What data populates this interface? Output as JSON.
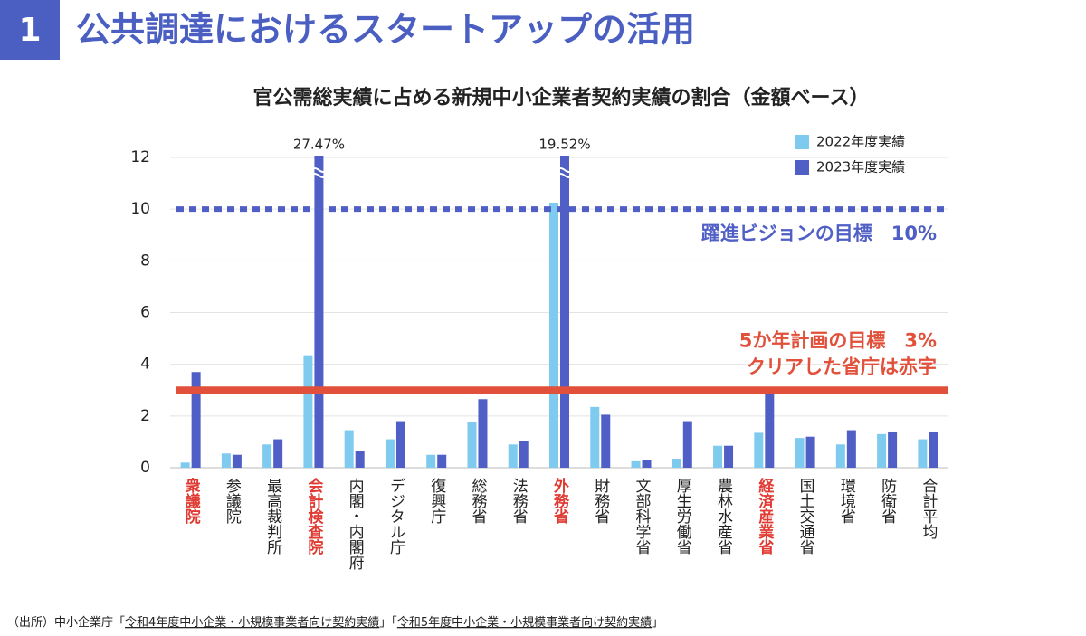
{
  "header": {
    "number": "1",
    "title": "公共調達におけるスタートアップの活用"
  },
  "chart_data": {
    "type": "bar",
    "title": "官公需総実績に占める新規中小企業者契約実績の割合（金額ベース）",
    "categories": [
      "衆議院",
      "参議院",
      "最高裁判所",
      "会計検査院",
      "内閣・内閣府",
      "デジタル庁",
      "復興庁",
      "総務省",
      "法務省",
      "外務省",
      "財務省",
      "文部科学省",
      "厚生労働省",
      "農林水産省",
      "経済産業省",
      "国土交通省",
      "環境省",
      "防衛省",
      "合計平均"
    ],
    "category_label_colors": [
      "#e03a32",
      "#222222",
      "#222222",
      "#e03a32",
      "#222222",
      "#222222",
      "#222222",
      "#222222",
      "#222222",
      "#e03a32",
      "#222222",
      "#222222",
      "#222222",
      "#222222",
      "#e03a32",
      "#222222",
      "#222222",
      "#222222",
      "#222222"
    ],
    "series": [
      {
        "name": "2022年度実績",
        "color": "#7ecbef",
        "values": [
          0.2,
          0.55,
          0.9,
          4.35,
          1.45,
          1.1,
          0.5,
          1.75,
          0.9,
          10.25,
          2.35,
          0.25,
          0.35,
          0.85,
          1.35,
          1.15,
          0.9,
          1.3,
          1.1
        ]
      },
      {
        "name": "2023年度実績",
        "color": "#4f5fc6",
        "values": [
          3.7,
          0.5,
          1.1,
          27.47,
          0.65,
          1.8,
          0.5,
          2.65,
          1.05,
          19.52,
          2.05,
          0.3,
          1.8,
          0.85,
          3.0,
          1.2,
          1.45,
          1.4,
          1.4
        ],
        "value_labels": [
          null,
          null,
          null,
          "27.47%",
          null,
          null,
          null,
          null,
          null,
          "19.52%",
          null,
          null,
          null,
          null,
          null,
          null,
          null,
          null,
          null
        ]
      }
    ],
    "ylim": [
      0,
      12
    ],
    "yticks": [
      0,
      2,
      4,
      6,
      8,
      10,
      12
    ],
    "grid": true,
    "legend": "upper right",
    "reference_lines": [
      {
        "value": 10,
        "label": "躍進ビジョンの目標　10%",
        "color": "#4f5fc6",
        "style": "dotted"
      },
      {
        "value": 3,
        "label": "5か年計画の目標　3%",
        "color": "#e0503a",
        "style": "solid"
      }
    ],
    "annotation": "クリアした省庁は赤字"
  },
  "source": [
    "（出所）中小企業庁「",
    "令和4年度中小企業・小規模事業者向け契約実績",
    "」「",
    "令和5年度中小企業・小規模事業者向け契約実績",
    "」"
  ]
}
